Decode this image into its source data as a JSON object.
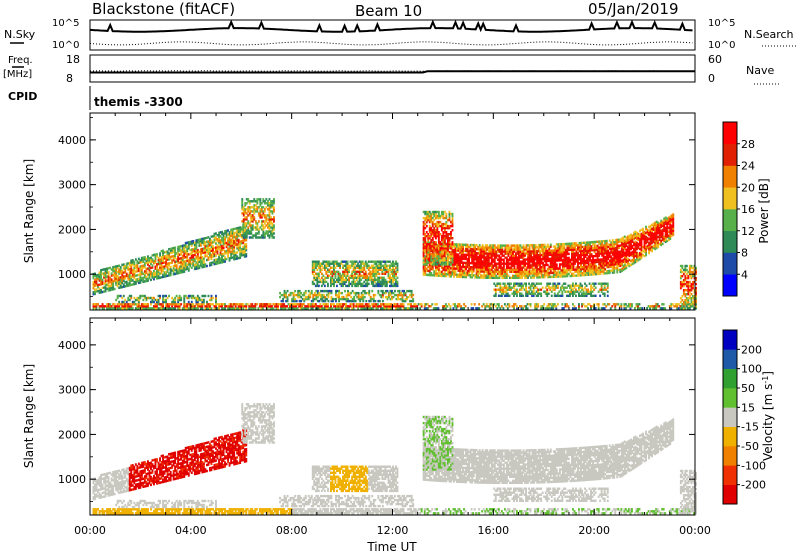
{
  "header": {
    "station": "Blackstone (fitACF)",
    "beam": "Beam 10",
    "date": "05/Jan/2019"
  },
  "summary": {
    "nsky_label": "N.Sky",
    "nsky_ticks": [
      "10^5",
      "10^0"
    ],
    "nsearch_label": "N.Search",
    "nsearch_ticks": [
      "10^5",
      "10^0"
    ],
    "freq_label_line1": "Freq.",
    "freq_label_line2": "[MHz]",
    "freq_ticks": [
      "18",
      "8"
    ],
    "nave_label": "Nave",
    "nave_ticks": [
      "60",
      "0"
    ],
    "cpid_label": "CPID",
    "cpid_value": "themis -3300"
  },
  "colors": {
    "power": [
      "#0000ff",
      "#1e4aa8",
      "#2e8b57",
      "#58b04a",
      "#f0c020",
      "#f08000",
      "#e02000",
      "#ff0000"
    ],
    "velocity": [
      "#e00000",
      "#f03000",
      "#f08000",
      "#f0b000",
      "#c8c8c0",
      "#60c030",
      "#30a030",
      "#1e5aa8",
      "#0000c0"
    ]
  },
  "chart_data": [
    {
      "type": "heatmap",
      "name": "power",
      "ylabel": "Slant Range [km]",
      "yticks": [
        "1000",
        "2000",
        "3000",
        "4000"
      ],
      "ylim": [
        200,
        4600
      ],
      "colorbar_label": "Power [dB]",
      "colorbar_ticks": [
        "4",
        "8",
        "12",
        "16",
        "20",
        "24",
        "28"
      ],
      "clim": [
        0,
        32
      ]
    },
    {
      "type": "heatmap",
      "name": "velocity",
      "ylabel": "Slant Range [km]",
      "yticks": [
        "1000",
        "2000",
        "3000",
        "4000"
      ],
      "ylim": [
        200,
        4600
      ],
      "colorbar_label": "Velocity [m s^-1]",
      "colorbar_ticks": [
        "-200",
        "-100",
        "-50",
        "-15",
        "15",
        "50",
        "100",
        "200"
      ],
      "xlabel": "Time UT",
      "xticks": [
        "00:00",
        "04:00",
        "08:00",
        "12:00",
        "16:00",
        "20:00",
        "00:00"
      ],
      "xlim": [
        0,
        24
      ]
    }
  ]
}
